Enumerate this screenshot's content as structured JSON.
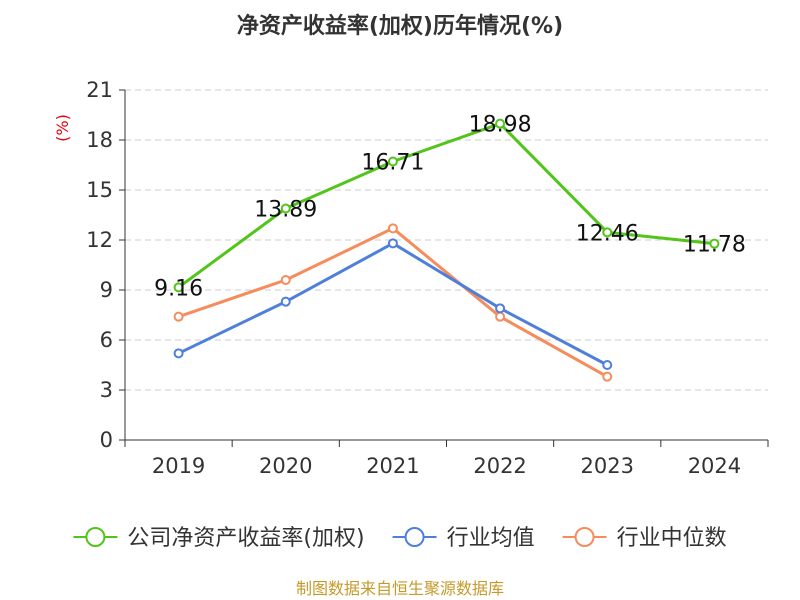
{
  "chart_data": {
    "type": "line",
    "title": "净资产收益率(加权)历年情况(%)",
    "ylabel": "(%)",
    "xlabel": "",
    "ylim": [
      0,
      21
    ],
    "yticks": [
      0,
      3,
      6,
      9,
      12,
      15,
      18,
      21
    ],
    "grid": true,
    "categories": [
      "2019",
      "2020",
      "2021",
      "2022",
      "2023",
      "2024"
    ],
    "legend_position": "bottom",
    "series": [
      {
        "name": "公司净资产收益率(加权)",
        "color": "#52c41a",
        "values": [
          9.16,
          13.89,
          16.71,
          18.98,
          12.46,
          11.78
        ],
        "labels": [
          "9.16",
          "13.89",
          "16.71",
          "18.98",
          "12.46",
          "11.78"
        ]
      },
      {
        "name": "行业均值",
        "color": "#4e7fdb",
        "values": [
          5.2,
          8.3,
          11.8,
          7.9,
          4.5,
          null
        ]
      },
      {
        "name": "行业中位数",
        "color": "#f68c5c",
        "values": [
          7.4,
          9.6,
          12.7,
          7.4,
          3.8,
          null
        ]
      }
    ],
    "source": "制图数据来自恒生聚源数据库"
  }
}
